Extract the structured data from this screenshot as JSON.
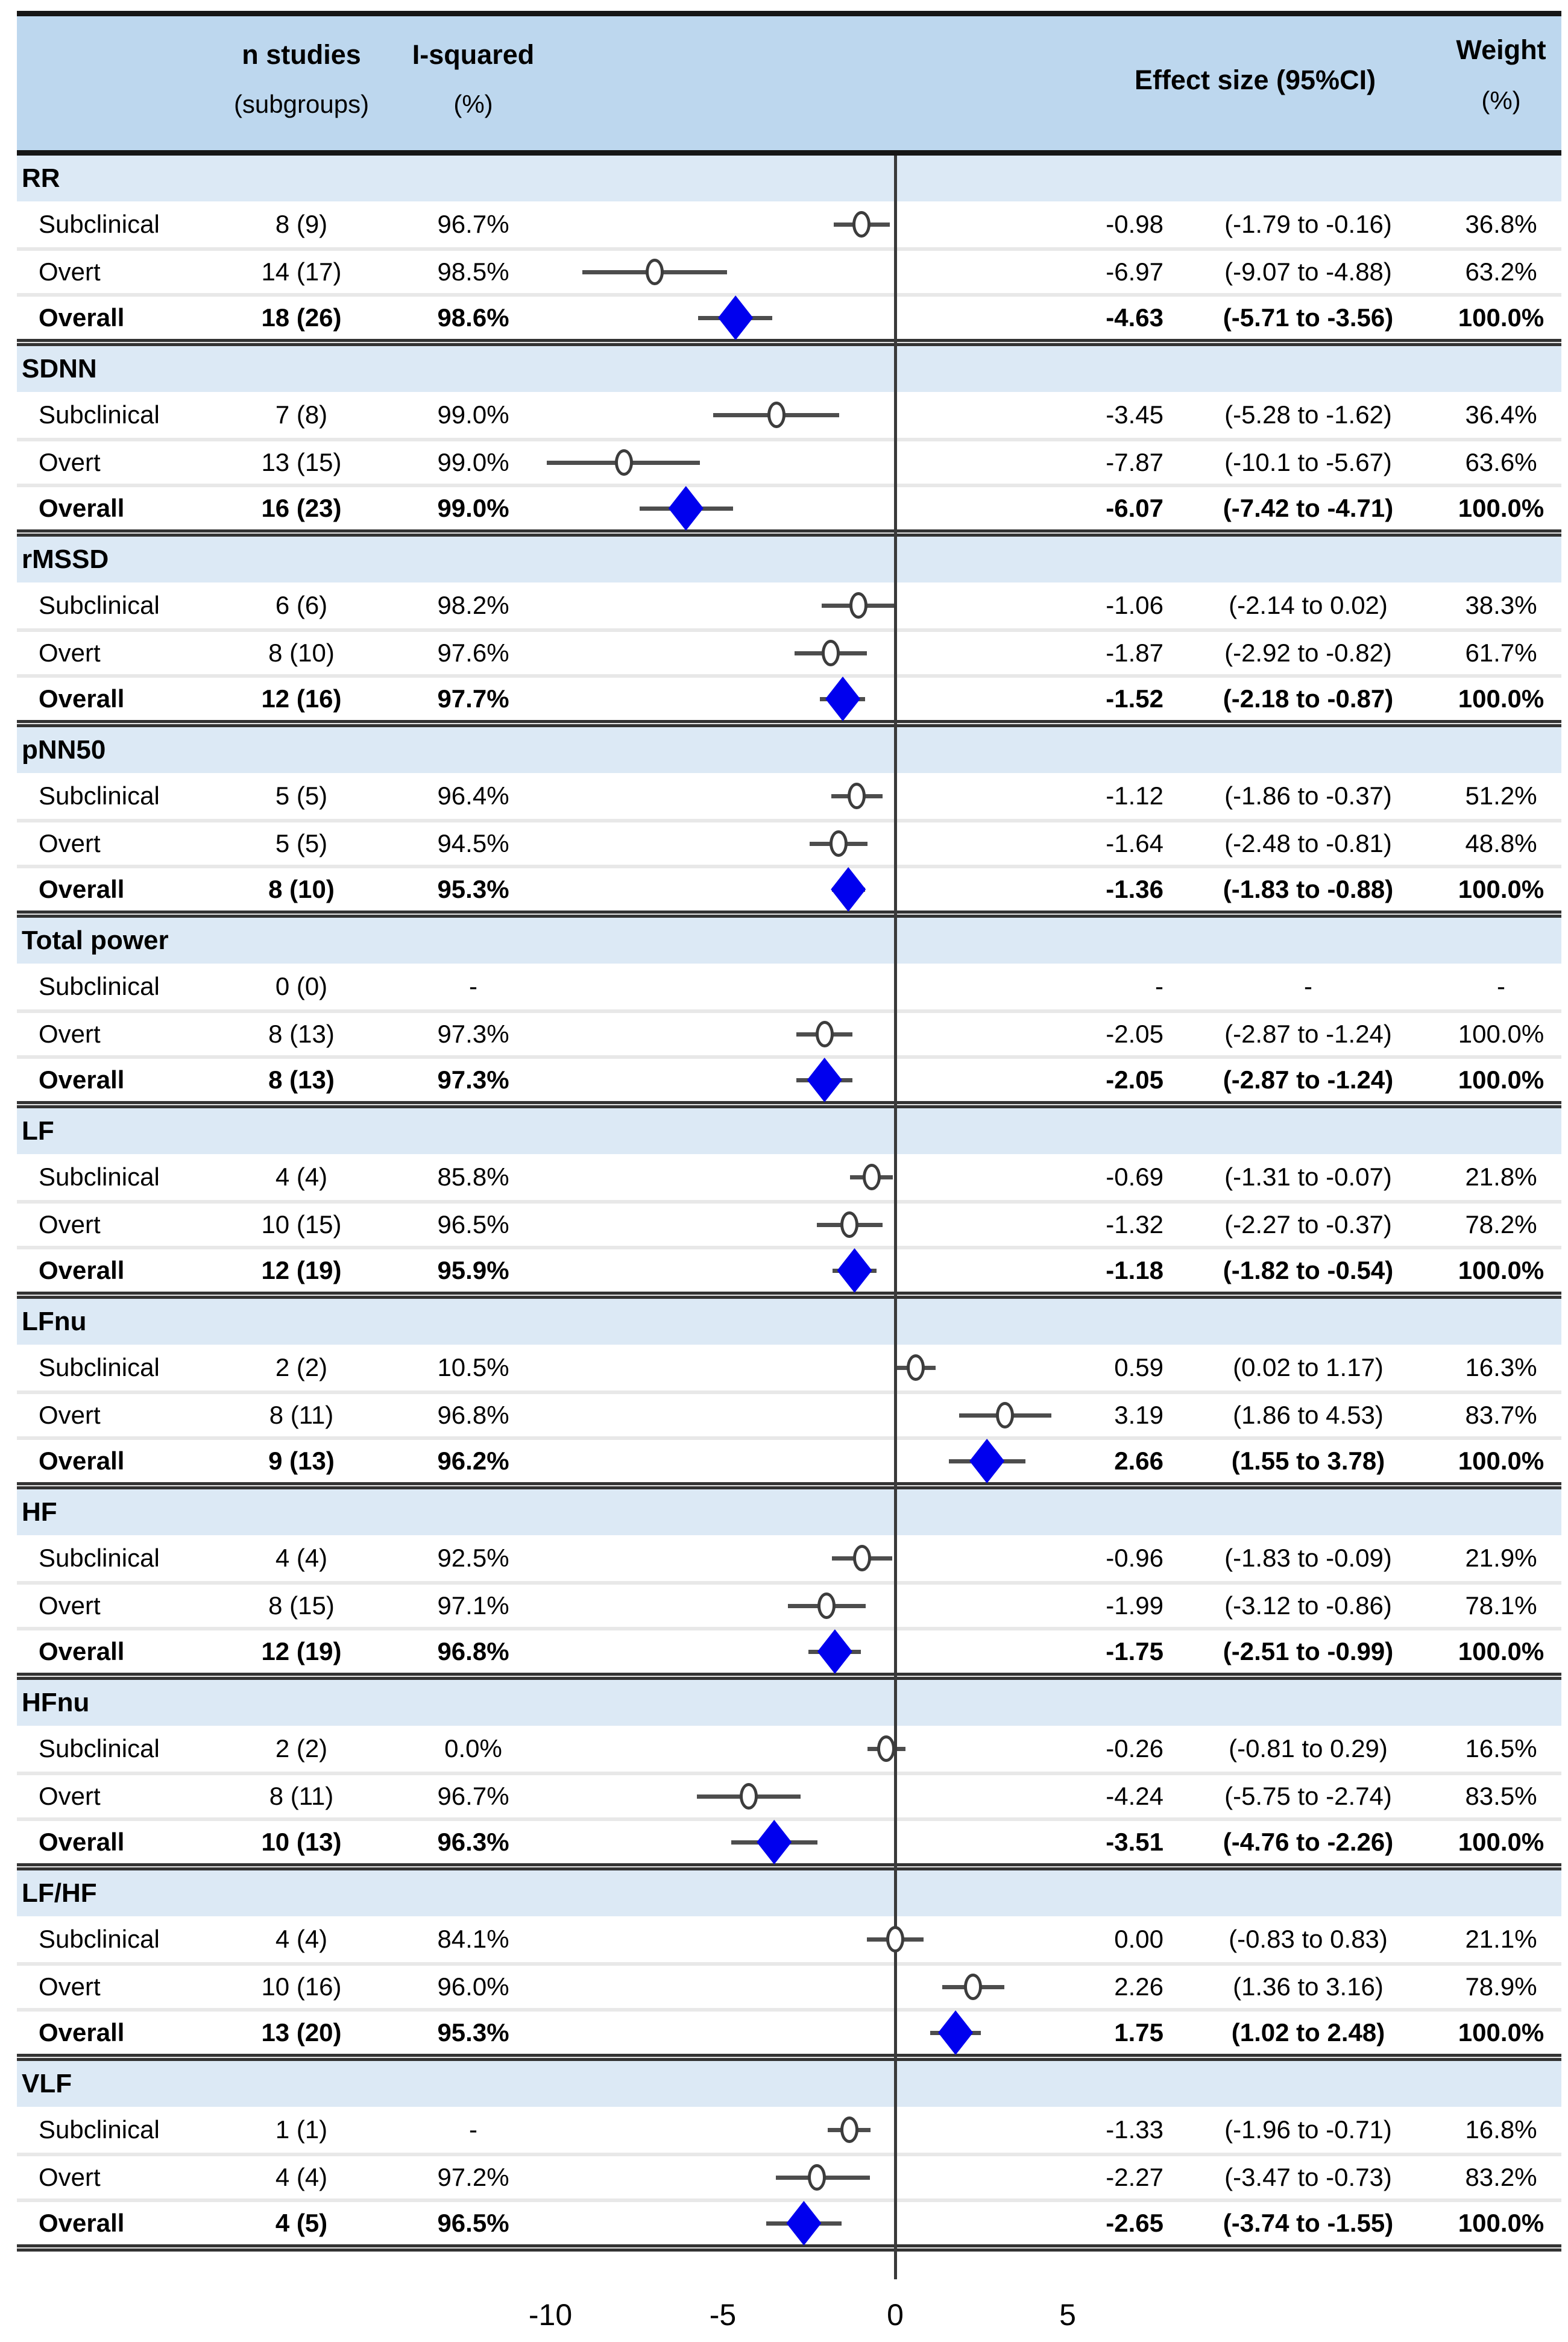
{
  "header": {
    "n_studies_line1": "n studies",
    "n_studies_line2": "(subgroups)",
    "i_squared_line1": "I-squared",
    "i_squared_line2": "(%)",
    "effect_size": "Effect size (95%CI)",
    "weight_line1": "Weight",
    "weight_line2": "(%)"
  },
  "colors": {
    "header_bg": "#BDD7EE",
    "group_bg": "#DCE9F5",
    "diamond_blue": "#0000EE",
    "ci_line": "#4D4D4D",
    "circle_stroke": "#3C3C3C",
    "zero_line": "#3A3A3A",
    "separator": "#E8E8E8",
    "top_bar": "#161616"
  },
  "chart_data": {
    "type": "forest",
    "x_ticks": [
      -10,
      -5,
      0,
      5
    ],
    "zero_reference": 0,
    "groups": [
      {
        "name": "RR",
        "rows": [
          {
            "label": "Subclinical",
            "n": "8 (9)",
            "i2": "96.7%",
            "effect": -0.98,
            "lo": -1.79,
            "hi": -0.16,
            "es": "-0.98",
            "ci": "(-1.79 to -0.16)",
            "w": "36.8%",
            "marker": "circle",
            "bold": false
          },
          {
            "label": "Overt",
            "n": "14 (17)",
            "i2": "98.5%",
            "effect": -6.97,
            "lo": -9.07,
            "hi": -4.88,
            "es": "-6.97",
            "ci": "(-9.07 to -4.88)",
            "w": "63.2%",
            "marker": "circle",
            "bold": false
          },
          {
            "label": "Overall",
            "n": "18 (26)",
            "i2": "98.6%",
            "effect": -4.63,
            "lo": -5.71,
            "hi": -3.56,
            "es": "-4.63",
            "ci": "(-5.71 to -3.56)",
            "w": "100.0%",
            "marker": "diamond",
            "bold": true
          }
        ]
      },
      {
        "name": "SDNN",
        "rows": [
          {
            "label": "Subclinical",
            "n": "7 (8)",
            "i2": "99.0%",
            "effect": -3.45,
            "lo": -5.28,
            "hi": -1.62,
            "es": "-3.45",
            "ci": "(-5.28 to -1.62)",
            "w": "36.4%",
            "marker": "circle",
            "bold": false
          },
          {
            "label": "Overt",
            "n": "13 (15)",
            "i2": "99.0%",
            "effect": -7.87,
            "lo": -10.1,
            "hi": -5.67,
            "es": "-7.87",
            "ci": "(-10.1 to -5.67)",
            "w": "63.6%",
            "marker": "circle",
            "bold": false
          },
          {
            "label": "Overall",
            "n": "16 (23)",
            "i2": "99.0%",
            "effect": -6.07,
            "lo": -7.42,
            "hi": -4.71,
            "es": "-6.07",
            "ci": "(-7.42 to -4.71)",
            "w": "100.0%",
            "marker": "diamond",
            "bold": true
          }
        ]
      },
      {
        "name": "rMSSD",
        "rows": [
          {
            "label": "Subclinical",
            "n": "6 (6)",
            "i2": "98.2%",
            "effect": -1.06,
            "lo": -2.14,
            "hi": 0.02,
            "es": "-1.06",
            "ci": "(-2.14 to 0.02)",
            "w": "38.3%",
            "marker": "circle",
            "bold": false
          },
          {
            "label": "Overt",
            "n": "8 (10)",
            "i2": "97.6%",
            "effect": -1.87,
            "lo": -2.92,
            "hi": -0.82,
            "es": "-1.87",
            "ci": "(-2.92 to -0.82)",
            "w": "61.7%",
            "marker": "circle",
            "bold": false
          },
          {
            "label": "Overall",
            "n": "12 (16)",
            "i2": "97.7%",
            "effect": -1.52,
            "lo": -2.18,
            "hi": -0.87,
            "es": "-1.52",
            "ci": "(-2.18 to -0.87)",
            "w": "100.0%",
            "marker": "diamond",
            "bold": true
          }
        ]
      },
      {
        "name": "pNN50",
        "rows": [
          {
            "label": "Subclinical",
            "n": "5 (5)",
            "i2": "96.4%",
            "effect": -1.12,
            "lo": -1.86,
            "hi": -0.37,
            "es": "-1.12",
            "ci": "(-1.86 to -0.37)",
            "w": "51.2%",
            "marker": "circle",
            "bold": false
          },
          {
            "label": "Overt",
            "n": "5 (5)",
            "i2": "94.5%",
            "effect": -1.64,
            "lo": -2.48,
            "hi": -0.81,
            "es": "-1.64",
            "ci": "(-2.48 to -0.81)",
            "w": "48.8%",
            "marker": "circle",
            "bold": false
          },
          {
            "label": "Overall",
            "n": "8 (10)",
            "i2": "95.3%",
            "effect": -1.36,
            "lo": -1.83,
            "hi": -0.88,
            "es": "-1.36",
            "ci": "(-1.83 to -0.88)",
            "w": "100.0%",
            "marker": "diamond",
            "bold": true
          }
        ]
      },
      {
        "name": "Total power",
        "rows": [
          {
            "label": "Subclinical",
            "n": "0 (0)",
            "i2": "-",
            "effect": null,
            "lo": null,
            "hi": null,
            "es": "-",
            "ci": "-",
            "w": "-",
            "marker": "none",
            "bold": false
          },
          {
            "label": "Overt",
            "n": "8 (13)",
            "i2": "97.3%",
            "effect": -2.05,
            "lo": -2.87,
            "hi": -1.24,
            "es": "-2.05",
            "ci": "(-2.87 to -1.24)",
            "w": "100.0%",
            "marker": "circle",
            "bold": false
          },
          {
            "label": "Overall",
            "n": "8 (13)",
            "i2": "97.3%",
            "effect": -2.05,
            "lo": -2.87,
            "hi": -1.24,
            "es": "-2.05",
            "ci": "(-2.87 to -1.24)",
            "w": "100.0%",
            "marker": "diamond",
            "bold": true
          }
        ]
      },
      {
        "name": "LF",
        "rows": [
          {
            "label": "Subclinical",
            "n": "4 (4)",
            "i2": "85.8%",
            "effect": -0.69,
            "lo": -1.31,
            "hi": -0.07,
            "es": "-0.69",
            "ci": "(-1.31 to -0.07)",
            "w": "21.8%",
            "marker": "circle",
            "bold": false
          },
          {
            "label": "Overt",
            "n": "10 (15)",
            "i2": "96.5%",
            "effect": -1.32,
            "lo": -2.27,
            "hi": -0.37,
            "es": "-1.32",
            "ci": "(-2.27 to -0.37)",
            "w": "78.2%",
            "marker": "circle",
            "bold": false
          },
          {
            "label": "Overall",
            "n": "12 (19)",
            "i2": "95.9%",
            "effect": -1.18,
            "lo": -1.82,
            "hi": -0.54,
            "es": "-1.18",
            "ci": "(-1.82 to -0.54)",
            "w": "100.0%",
            "marker": "diamond",
            "bold": true
          }
        ]
      },
      {
        "name": "LFnu",
        "rows": [
          {
            "label": "Subclinical",
            "n": "2 (2)",
            "i2": "10.5%",
            "effect": 0.59,
            "lo": 0.02,
            "hi": 1.17,
            "es": "0.59",
            "ci": "(0.02 to 1.17)",
            "w": "16.3%",
            "marker": "circle",
            "bold": false
          },
          {
            "label": "Overt",
            "n": "8 (11)",
            "i2": "96.8%",
            "effect": 3.19,
            "lo": 1.86,
            "hi": 4.53,
            "es": "3.19",
            "ci": "(1.86 to 4.53)",
            "w": "83.7%",
            "marker": "circle",
            "bold": false
          },
          {
            "label": "Overall",
            "n": "9 (13)",
            "i2": "96.2%",
            "effect": 2.66,
            "lo": 1.55,
            "hi": 3.78,
            "es": "2.66",
            "ci": "(1.55 to 3.78)",
            "w": "100.0%",
            "marker": "diamond",
            "bold": true
          }
        ]
      },
      {
        "name": "HF",
        "rows": [
          {
            "label": "Subclinical",
            "n": "4 (4)",
            "i2": "92.5%",
            "effect": -0.96,
            "lo": -1.83,
            "hi": -0.09,
            "es": "-0.96",
            "ci": "(-1.83 to -0.09)",
            "w": "21.9%",
            "marker": "circle",
            "bold": false
          },
          {
            "label": "Overt",
            "n": "8 (15)",
            "i2": "97.1%",
            "effect": -1.99,
            "lo": -3.12,
            "hi": -0.86,
            "es": "-1.99",
            "ci": "(-3.12 to -0.86)",
            "w": "78.1%",
            "marker": "circle",
            "bold": false
          },
          {
            "label": "Overall",
            "n": "12 (19)",
            "i2": "96.8%",
            "effect": -1.75,
            "lo": -2.51,
            "hi": -0.99,
            "es": "-1.75",
            "ci": "(-2.51 to -0.99)",
            "w": "100.0%",
            "marker": "diamond",
            "bold": true
          }
        ]
      },
      {
        "name": "HFnu",
        "rows": [
          {
            "label": "Subclinical",
            "n": "2 (2)",
            "i2": "0.0%",
            "effect": -0.26,
            "lo": -0.81,
            "hi": 0.29,
            "es": "-0.26",
            "ci": "(-0.81 to 0.29)",
            "w": "16.5%",
            "marker": "circle",
            "bold": false
          },
          {
            "label": "Overt",
            "n": "8 (11)",
            "i2": "96.7%",
            "effect": -4.24,
            "lo": -5.75,
            "hi": -2.74,
            "es": "-4.24",
            "ci": "(-5.75 to -2.74)",
            "w": "83.5%",
            "marker": "circle",
            "bold": false
          },
          {
            "label": "Overall",
            "n": "10 (13)",
            "i2": "96.3%",
            "effect": -3.51,
            "lo": -4.76,
            "hi": -2.26,
            "es": "-3.51",
            "ci": "(-4.76 to -2.26)",
            "w": "100.0%",
            "marker": "diamond",
            "bold": true
          }
        ]
      },
      {
        "name": "LF/HF",
        "rows": [
          {
            "label": "Subclinical",
            "n": "4 (4)",
            "i2": "84.1%",
            "effect": 0.0,
            "lo": -0.83,
            "hi": 0.83,
            "es": "0.00",
            "ci": "(-0.83 to 0.83)",
            "w": "21.1%",
            "marker": "circle",
            "bold": false
          },
          {
            "label": "Overt",
            "n": "10 (16)",
            "i2": "96.0%",
            "effect": 2.26,
            "lo": 1.36,
            "hi": 3.16,
            "es": "2.26",
            "ci": "(1.36 to 3.16)",
            "w": "78.9%",
            "marker": "circle",
            "bold": false
          },
          {
            "label": "Overall",
            "n": "13 (20)",
            "i2": "95.3%",
            "effect": 1.75,
            "lo": 1.02,
            "hi": 2.48,
            "es": "1.75",
            "ci": "(1.02 to 2.48)",
            "w": "100.0%",
            "marker": "diamond",
            "bold": true
          }
        ]
      },
      {
        "name": "VLF",
        "rows": [
          {
            "label": "Subclinical",
            "n": "1 (1)",
            "i2": "-",
            "effect": -1.33,
            "lo": -1.96,
            "hi": -0.71,
            "es": "-1.33",
            "ci": "(-1.96 to -0.71)",
            "w": "16.8%",
            "marker": "circle",
            "bold": false
          },
          {
            "label": "Overt",
            "n": "4 (4)",
            "i2": "97.2%",
            "effect": -2.27,
            "lo": -3.47,
            "hi": -0.73,
            "es": "-2.27",
            "ci": "(-3.47 to -0.73)",
            "w": "83.2%",
            "marker": "circle",
            "bold": false
          },
          {
            "label": "Overall",
            "n": "4 (5)",
            "i2": "96.5%",
            "effect": -2.65,
            "lo": -3.74,
            "hi": -1.55,
            "es": "-2.65",
            "ci": "(-3.74 to -1.55)",
            "w": "100.0%",
            "marker": "diamond",
            "bold": true
          }
        ]
      }
    ]
  }
}
